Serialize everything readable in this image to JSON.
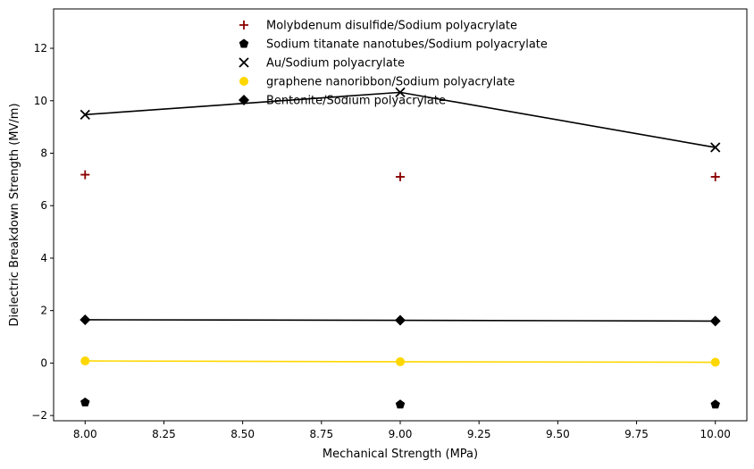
{
  "chart_data": {
    "type": "scatter",
    "title": "",
    "xlabel": "Mechanical Strength (MPa)",
    "ylabel": "Dielectric Breakdown Strength (MV/m)",
    "xlim": [
      7.9,
      10.1
    ],
    "ylim": [
      -2.2,
      13.5
    ],
    "xticks": [
      8.0,
      8.25,
      8.5,
      8.75,
      9.0,
      9.25,
      9.5,
      9.75,
      10.0
    ],
    "xtick_labels": [
      "8.00",
      "8.25",
      "8.50",
      "8.75",
      "9.00",
      "9.25",
      "9.50",
      "9.75",
      "10.00"
    ],
    "yticks": [
      -2,
      0,
      2,
      4,
      6,
      8,
      10,
      12
    ],
    "ytick_labels": [
      "−2",
      "0",
      "2",
      "4",
      "6",
      "8",
      "10",
      "12"
    ],
    "grid": false,
    "legend_position": "top-center",
    "series": [
      {
        "name": "Molybdenum disulfide/Sodium polyacrylate",
        "marker": "plus",
        "color": "#8b0000",
        "line": false,
        "points": [
          [
            8.0,
            7.18
          ],
          [
            9.0,
            7.1
          ],
          [
            10.0,
            7.1
          ]
        ]
      },
      {
        "name": "Sodium titanate nanotubes/Sodium polyacrylate",
        "marker": "pentagon",
        "color": "#000000",
        "line": false,
        "points": [
          [
            8.0,
            -1.5
          ],
          [
            9.0,
            -1.58
          ],
          [
            10.0,
            -1.58
          ]
        ]
      },
      {
        "name": "Au/Sodium polyacrylate",
        "marker": "x",
        "color": "#000000",
        "line": true,
        "points": [
          [
            8.0,
            9.47
          ],
          [
            9.0,
            10.32
          ],
          [
            10.0,
            8.22
          ]
        ]
      },
      {
        "name": "graphene nanoribbon/Sodium polyacrylate",
        "marker": "circle",
        "color": "#ffd700",
        "line": true,
        "points": [
          [
            8.0,
            0.08
          ],
          [
            9.0,
            0.05
          ],
          [
            10.0,
            0.03
          ]
        ]
      },
      {
        "name": "Bentonite/Sodium polyacrylate",
        "marker": "diamond",
        "color": "#000000",
        "line": true,
        "points": [
          [
            8.0,
            1.65
          ],
          [
            9.0,
            1.63
          ],
          [
            10.0,
            1.6
          ]
        ]
      }
    ]
  }
}
